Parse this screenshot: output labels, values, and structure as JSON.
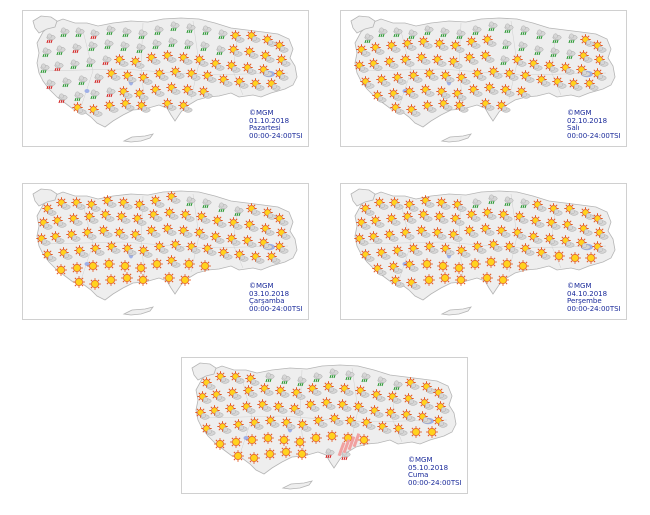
{
  "source_label": "©MGM",
  "time_range": "00:00-24:00TSI",
  "colors": {
    "land": "#eeeeee",
    "border": "#b5b5b5",
    "lake": "#9fb0e8",
    "caption": "#1a2a9a",
    "sun": "#ffd21e",
    "sun_ray": "#e2571f",
    "cloud": "#d6d6d6",
    "rain": "#2e9a36",
    "rain_red": "#d42626",
    "hot_strip": "#f1a0a0"
  },
  "days": [
    {
      "date": "01.10.2018",
      "weekday": "Pazartesi"
    },
    {
      "date": "02.10.2018",
      "weekday": "Salı"
    },
    {
      "date": "03.10.2018",
      "weekday": "Çarşamba"
    },
    {
      "date": "04.10.2018",
      "weekday": "Perşembe"
    },
    {
      "date": "05.10.2018",
      "weekday": "Cuma"
    }
  ]
}
